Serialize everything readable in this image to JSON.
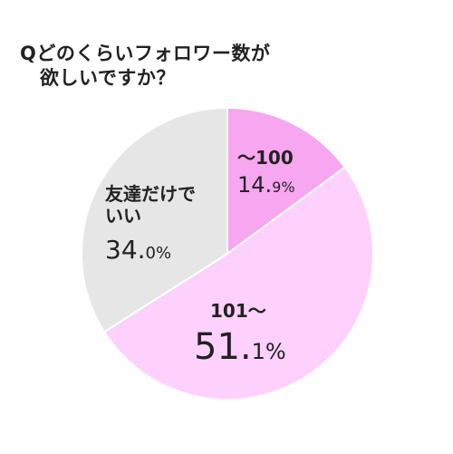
{
  "title": {
    "line1": "Qどのくらいフォロワー数が",
    "line2": "欲しいですか？"
  },
  "chart_data": {
    "type": "pie",
    "title": "Qどのくらいフォロワー数が欲しいですか？",
    "start_angle_deg": 0,
    "direction": "clockwise",
    "slices": [
      {
        "label": "〜100",
        "value": 14.9,
        "int_part": "14.",
        "dec_part": "9%",
        "color": "#f7a6f0"
      },
      {
        "label": "101〜",
        "value": 51.1,
        "int_part": "51.",
        "dec_part": "1%",
        "color": "#fdd1fb"
      },
      {
        "label_line1": "友達だけで",
        "label_line2": "いい",
        "value": 34.0,
        "int_part": "34.",
        "dec_part": "0%",
        "color": "#e6e6e6"
      }
    ]
  }
}
